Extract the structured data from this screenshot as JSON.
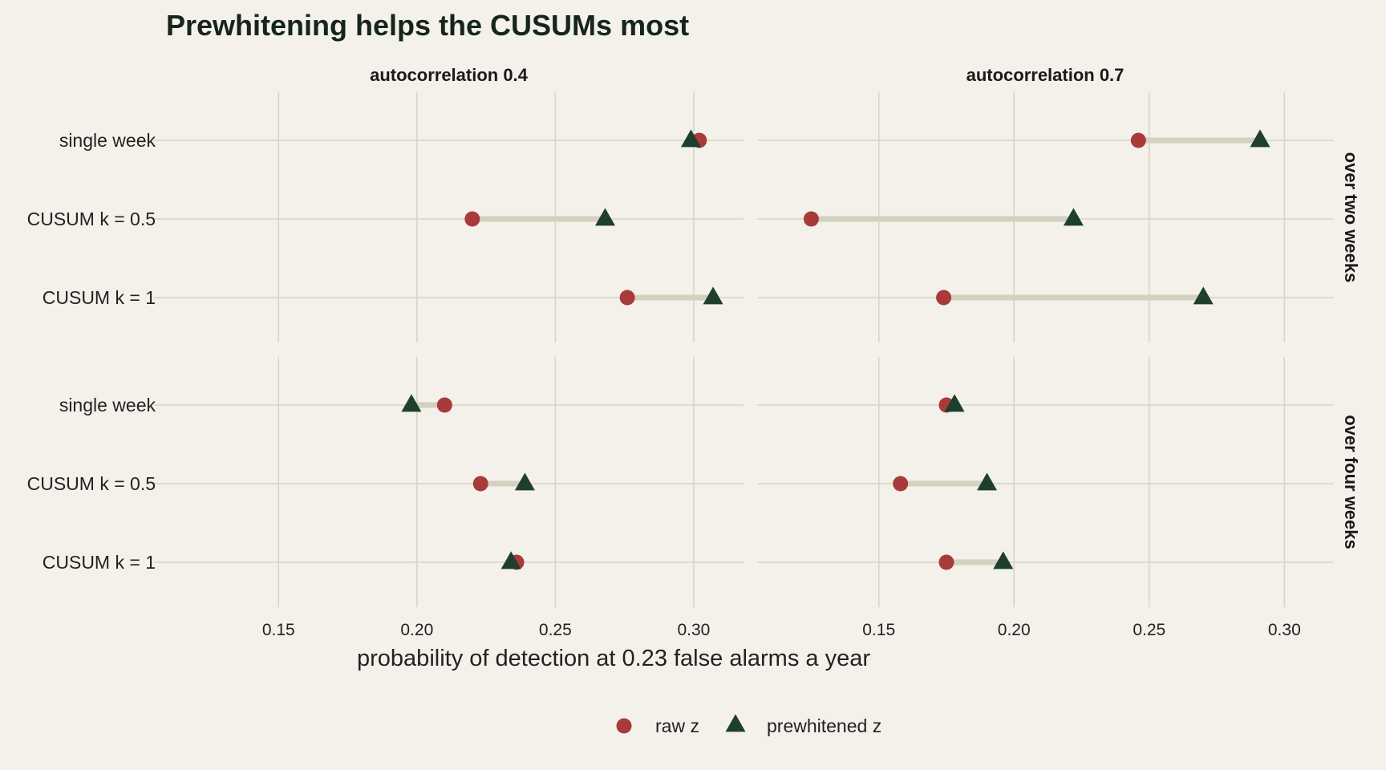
{
  "chart_data": {
    "type": "dot-dumbbell",
    "title": "Prewhitening helps the CUSUMs most",
    "xlabel": "probability of detection at 0.23 false alarms a year",
    "xlim": [
      0.105,
      0.318
    ],
    "xticks": [
      "0.15",
      "0.20",
      "0.25",
      "0.30"
    ],
    "xtick_values": [
      0.15,
      0.2,
      0.25,
      0.3
    ],
    "categories": [
      "single week",
      "CUSUM k = 0.5",
      "CUSUM k = 1"
    ],
    "col_facets": [
      "autocorrelation 0.4",
      "autocorrelation 0.7"
    ],
    "row_facets": [
      "over two weeks",
      "over four weeks"
    ],
    "series": [
      {
        "name": "raw z",
        "color": "#a83a3a",
        "marker": "circle"
      },
      {
        "name": "prewhitened z",
        "color": "#1e3f2b",
        "marker": "triangle"
      }
    ],
    "panels": [
      {
        "row": 0,
        "col": 0,
        "raw": [
          0.302,
          0.22,
          0.276
        ],
        "prewhitened": [
          0.299,
          0.268,
          0.307
        ]
      },
      {
        "row": 0,
        "col": 1,
        "raw": [
          0.246,
          0.125,
          0.174
        ],
        "prewhitened": [
          0.291,
          0.222,
          0.27
        ]
      },
      {
        "row": 1,
        "col": 0,
        "raw": [
          0.21,
          0.223,
          0.236
        ],
        "prewhitened": [
          0.198,
          0.239,
          0.234
        ]
      },
      {
        "row": 1,
        "col": 1,
        "raw": [
          0.175,
          0.158,
          0.175
        ],
        "prewhitened": [
          0.178,
          0.19,
          0.196
        ]
      }
    ],
    "legend_position": "bottom",
    "grid": true,
    "colors": {
      "background": "#f3f1ea",
      "grid": "#d6d4c4",
      "segment": "#d3d1bf"
    }
  }
}
